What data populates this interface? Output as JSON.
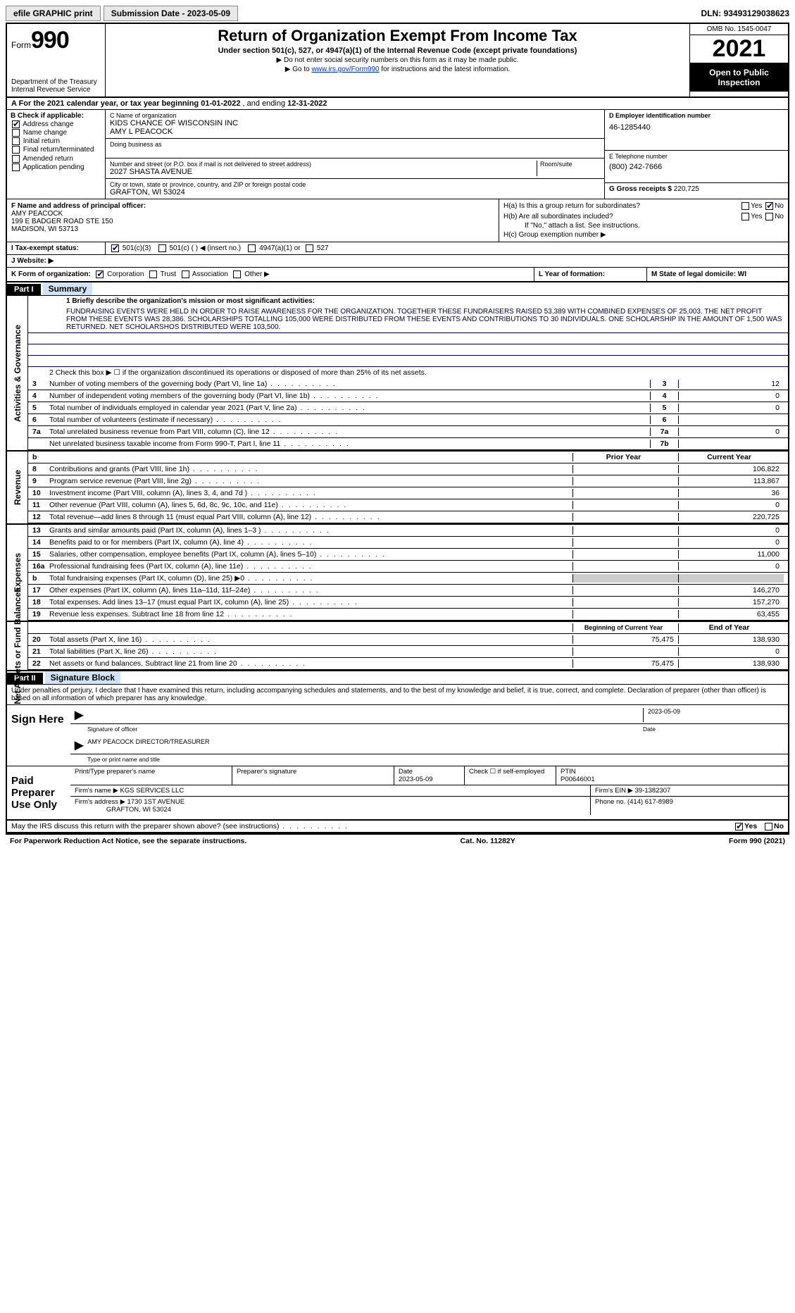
{
  "topbar": {
    "efile": "efile GRAPHIC print",
    "submission_label": "Submission Date - 2023-05-09",
    "dln_label": "DLN:",
    "dln": "93493129038623"
  },
  "header": {
    "form_word": "Form",
    "form_num": "990",
    "dept": "Department of the Treasury",
    "irs": "Internal Revenue Service",
    "title": "Return of Organization Exempt From Income Tax",
    "sub": "Under section 501(c), 527, or 4947(a)(1) of the Internal Revenue Code (except private foundations)",
    "note1": "▶ Do not enter social security numbers on this form as it may be made public.",
    "note2_pre": "▶ Go to ",
    "note2_link": "www.irs.gov/Form990",
    "note2_post": " for instructions and the latest information.",
    "omb": "OMB No. 1545-0047",
    "year": "2021",
    "inspect": "Open to Public Inspection"
  },
  "A": {
    "text_pre": "A  For the 2021 calendar year, or tax year beginning ",
    "begin": "01-01-2022",
    "mid": " , and ending ",
    "end": "12-31-2022"
  },
  "B": {
    "label": "B Check if applicable:",
    "opts": [
      "Address change",
      "Name change",
      "Initial return",
      "Final return/terminated",
      "Amended return",
      "Application pending"
    ],
    "checked_idx": 0
  },
  "C": {
    "name_lbl": "C Name of organization",
    "name1": "KIDS CHANCE OF WISCONSIN INC",
    "name2": "AMY L PEACOCK",
    "dba_lbl": "Doing business as",
    "addr_lbl": "Number and street (or P.O. box if mail is not delivered to street address)",
    "addr": "2027 SHASTA AVENUE",
    "room_lbl": "Room/suite",
    "city_lbl": "City or town, state or province, country, and ZIP or foreign postal code",
    "city": "GRAFTON, WI  53024"
  },
  "D": {
    "lbl": "D Employer identification number",
    "val": "46-1285440"
  },
  "E": {
    "lbl": "E Telephone number",
    "val": "(800) 242-7666"
  },
  "G": {
    "lbl": "G Gross receipts $",
    "val": "220,725"
  },
  "F": {
    "lbl": "F  Name and address of principal officer:",
    "name": "AMY PEACOCK",
    "addr1": "199 E BADGER ROAD STE 150",
    "addr2": "MADISON, WI  53713"
  },
  "H": {
    "a": "H(a)  Is this a group return for subordinates?",
    "b": "H(b)  Are all subordinates included?",
    "b_note": "If \"No,\" attach a list. See instructions.",
    "c": "H(c)  Group exemption number ▶",
    "yes": "Yes",
    "no": "No"
  },
  "I": {
    "lbl": "I   Tax-exempt status:",
    "o1": "501(c)(3)",
    "o2": "501(c) (  ) ◀ (insert no.)",
    "o3": "4947(a)(1) or",
    "o4": "527"
  },
  "J": {
    "lbl": "J   Website: ▶"
  },
  "K": {
    "lbl": "K Form of organization:",
    "o1": "Corporation",
    "o2": "Trust",
    "o3": "Association",
    "o4": "Other ▶"
  },
  "L": {
    "lbl": "L Year of formation:"
  },
  "M": {
    "lbl": "M State of legal domicile: WI"
  },
  "part1": {
    "hdr": "Part I",
    "title": "Summary"
  },
  "p1": {
    "l1_lbl": "1  Briefly describe the organization's mission or most significant activities:",
    "l1_txt": "FUNDRAISING EVENTS WERE HELD IN ORDER TO RAISE AWARENESS FOR THE ORGANIZATION. TOGETHER THESE FUNDRAISERS RAISED 53,389 WITH COMBINED EXPENSES OF 25,003. THE NET PROFIT FROM THESE EVENTS WAS 28,386. SCHOLARSHIPS TOTALLING 105,000 WERE DISTRIBUTED FROM THESE EVENTS AND CONTRIBUTIONS TO 30 INDIVIDUALS. ONE SCHOLARSHIP IN THE AMOUNT OF 1,500 WAS RETURNED. NET SCHOLARSHOS DISTRIBUTED WERE 103,500.",
    "l2": "2    Check this box ▶ ☐  if the organization discontinued its operations or disposed of more than 25% of its net assets.",
    "rows_ag": [
      {
        "n": "3",
        "t": "Number of voting members of the governing body (Part VI, line 1a)",
        "k": "3",
        "v": "12"
      },
      {
        "n": "4",
        "t": "Number of independent voting members of the governing body (Part VI, line 1b)",
        "k": "4",
        "v": "0"
      },
      {
        "n": "5",
        "t": "Total number of individuals employed in calendar year 2021 (Part V, line 2a)",
        "k": "5",
        "v": "0"
      },
      {
        "n": "6",
        "t": "Total number of volunteers (estimate if necessary)",
        "k": "6",
        "v": ""
      },
      {
        "n": "7a",
        "t": "Total unrelated business revenue from Part VIII, column (C), line 12",
        "k": "7a",
        "v": "0"
      },
      {
        "n": "",
        "t": "Net unrelated business taxable income from Form 990-T, Part I, line 11",
        "k": "7b",
        "v": ""
      }
    ],
    "col_prior": "Prior Year",
    "col_curr": "Current Year",
    "rows_rev": [
      {
        "n": "8",
        "t": "Contributions and grants (Part VIII, line 1h)",
        "p": "",
        "c": "106,822"
      },
      {
        "n": "9",
        "t": "Program service revenue (Part VIII, line 2g)",
        "p": "",
        "c": "113,867"
      },
      {
        "n": "10",
        "t": "Investment income (Part VIII, column (A), lines 3, 4, and 7d )",
        "p": "",
        "c": "36"
      },
      {
        "n": "11",
        "t": "Other revenue (Part VIII, column (A), lines 5, 6d, 8c, 9c, 10c, and 11e)",
        "p": "",
        "c": "0"
      },
      {
        "n": "12",
        "t": "Total revenue—add lines 8 through 11 (must equal Part VIII, column (A), line 12)",
        "p": "",
        "c": "220,725"
      }
    ],
    "rows_exp": [
      {
        "n": "13",
        "t": "Grants and similar amounts paid (Part IX, column (A), lines 1–3 )",
        "p": "",
        "c": "0"
      },
      {
        "n": "14",
        "t": "Benefits paid to or for members (Part IX, column (A), line 4)",
        "p": "",
        "c": "0"
      },
      {
        "n": "15",
        "t": "Salaries, other compensation, employee benefits (Part IX, column (A), lines 5–10)",
        "p": "",
        "c": "11,000"
      },
      {
        "n": "16a",
        "t": "Professional fundraising fees (Part IX, column (A), line 11e)",
        "p": "",
        "c": "0"
      },
      {
        "n": "b",
        "t": "Total fundraising expenses (Part IX, column (D), line 25) ▶0",
        "p": "shade",
        "c": "shade"
      },
      {
        "n": "17",
        "t": "Other expenses (Part IX, column (A), lines 11a–11d, 11f–24e)",
        "p": "",
        "c": "146,270"
      },
      {
        "n": "18",
        "t": "Total expenses. Add lines 13–17 (must equal Part IX, column (A), line 25)",
        "p": "",
        "c": "157,270"
      },
      {
        "n": "19",
        "t": "Revenue less expenses. Subtract line 18 from line 12",
        "p": "",
        "c": "63,455"
      }
    ],
    "col_beg": "Beginning of Current Year",
    "col_end": "End of Year",
    "rows_na": [
      {
        "n": "20",
        "t": "Total assets (Part X, line 16)",
        "p": "75,475",
        "c": "138,930"
      },
      {
        "n": "21",
        "t": "Total liabilities (Part X, line 26)",
        "p": "",
        "c": "0"
      },
      {
        "n": "22",
        "t": "Net assets or fund balances. Subtract line 21 from line 20",
        "p": "75,475",
        "c": "138,930"
      }
    ]
  },
  "part2": {
    "hdr": "Part II",
    "title": "Signature Block"
  },
  "sig": {
    "decl": "Under penalties of perjury, I declare that I have examined this return, including accompanying schedules and statements, and to the best of my knowledge and belief, it is true, correct, and complete. Declaration of preparer (other than officer) is based on all information of which preparer has any knowledge.",
    "sign_here": "Sign Here",
    "sig_officer": "Signature of officer",
    "date": "2023-05-09",
    "date_lbl": "Date",
    "name": "AMY PEACOCK  DIRECTOR/TREASURER",
    "name_lbl": "Type or print name and title",
    "paid": "Paid Preparer Use Only",
    "pt_name_lbl": "Print/Type preparer's name",
    "pt_sig_lbl": "Preparer's signature",
    "pt_date": "2023-05-09",
    "pt_check": "Check ☐ if self-employed",
    "ptin_lbl": "PTIN",
    "ptin": "P00646001",
    "firm_name_lbl": "Firm's name ▶",
    "firm_name": "KGS SERVICES LLC",
    "firm_ein_lbl": "Firm's EIN ▶",
    "firm_ein": "39-1382307",
    "firm_addr_lbl": "Firm's address ▶",
    "firm_addr1": "1730 1ST AVENUE",
    "firm_addr2": "GRAFTON, WI  53024",
    "phone_lbl": "Phone no.",
    "phone": "(414) 617-8989",
    "discuss": "May the IRS discuss this return with the preparer shown above? (see instructions)"
  },
  "footer": {
    "left": "For Paperwork Reduction Act Notice, see the separate instructions.",
    "mid": "Cat. No. 11282Y",
    "right": "Form 990 (2021)"
  },
  "vlabels": {
    "ag": "Activities & Governance",
    "rev": "Revenue",
    "exp": "Expenses",
    "na": "Net Assets or Fund Balances"
  },
  "colors": {
    "link": "#0033cc",
    "shade": "#cccccc",
    "part_title_bg": "#d0e4f5"
  }
}
